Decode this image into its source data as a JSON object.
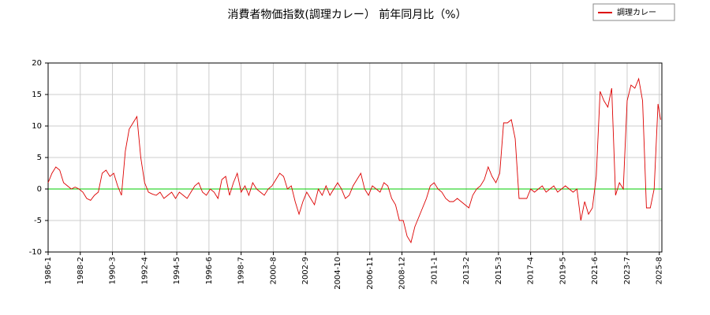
{
  "chart_data": {
    "type": "line",
    "title": "消費者物価指数(調理カレー） 前年同月比（%）",
    "x": [
      "1986-1",
      "1986-4",
      "1986-7",
      "1986-10",
      "1987-1",
      "1987-4",
      "1987-7",
      "1987-10",
      "1988-1",
      "1988-4",
      "1988-7",
      "1988-10",
      "1989-1",
      "1989-4",
      "1989-7",
      "1989-10",
      "1990-1",
      "1990-4",
      "1990-7",
      "1990-10",
      "1991-1",
      "1991-4",
      "1991-7",
      "1991-10",
      "1992-1",
      "1992-4",
      "1992-7",
      "1992-10",
      "1993-1",
      "1993-4",
      "1993-7",
      "1993-10",
      "1994-1",
      "1994-4",
      "1994-7",
      "1994-10",
      "1995-1",
      "1995-4",
      "1995-7",
      "1995-10",
      "1996-1",
      "1996-4",
      "1996-7",
      "1996-10",
      "1997-1",
      "1997-4",
      "1997-7",
      "1997-10",
      "1998-1",
      "1998-4",
      "1998-7",
      "1998-10",
      "1999-1",
      "1999-4",
      "1999-7",
      "1999-10",
      "2000-1",
      "2000-4",
      "2000-7",
      "2000-10",
      "2001-1",
      "2001-4",
      "2001-7",
      "2001-10",
      "2002-1",
      "2002-4",
      "2002-7",
      "2002-10",
      "2003-1",
      "2003-4",
      "2003-7",
      "2003-10",
      "2004-1",
      "2004-4",
      "2004-7",
      "2004-10",
      "2005-1",
      "2005-4",
      "2005-7",
      "2005-10",
      "2006-1",
      "2006-4",
      "2006-7",
      "2006-10",
      "2007-1",
      "2007-4",
      "2007-7",
      "2007-10",
      "2008-1",
      "2008-4",
      "2008-7",
      "2008-10",
      "2009-1",
      "2009-4",
      "2009-7",
      "2009-10",
      "2010-1",
      "2010-4",
      "2010-7",
      "2010-10",
      "2011-1",
      "2011-4",
      "2011-7",
      "2011-10",
      "2012-1",
      "2012-4",
      "2012-7",
      "2012-10",
      "2013-1",
      "2013-4",
      "2013-7",
      "2013-10",
      "2014-1",
      "2014-4",
      "2014-7",
      "2014-10",
      "2015-1",
      "2015-4",
      "2015-7",
      "2015-10",
      "2016-1",
      "2016-4",
      "2016-7",
      "2016-10",
      "2017-1",
      "2017-4",
      "2017-7",
      "2017-10",
      "2018-1",
      "2018-4",
      "2018-7",
      "2018-10",
      "2019-1",
      "2019-4",
      "2019-7",
      "2019-10",
      "2020-1",
      "2020-4",
      "2020-7",
      "2020-10",
      "2021-1",
      "2021-4",
      "2021-7",
      "2021-10",
      "2022-1",
      "2022-4",
      "2022-7",
      "2022-10",
      "2023-1",
      "2023-4",
      "2023-7",
      "2023-10",
      "2024-1",
      "2024-4",
      "2024-7",
      "2024-10",
      "2025-1",
      "2025-4",
      "2025-7",
      "2025-9"
    ],
    "series": [
      {
        "name": "調理カレー",
        "color": "#dd0000",
        "values": [
          1,
          2.5,
          3.5,
          3,
          1,
          0.5,
          0,
          0.3,
          0,
          -0.5,
          -1.5,
          -1.8,
          -1,
          -0.5,
          2.5,
          3,
          2,
          2.5,
          0.5,
          -1,
          6,
          9.5,
          10.5,
          11.5,
          5,
          1,
          -0.5,
          -0.8,
          -1,
          -0.5,
          -1.5,
          -1,
          -0.5,
          -1.5,
          -0.5,
          -1,
          -1.5,
          -0.5,
          0.5,
          1,
          -0.5,
          -1,
          0,
          -0.5,
          -1.5,
          1.5,
          2,
          -1,
          1,
          2.5,
          -0.5,
          0.5,
          -1,
          1,
          0,
          -0.5,
          -1,
          0,
          0.5,
          1.5,
          2.5,
          2,
          0,
          0.5,
          -2,
          -4,
          -2,
          -0.5,
          -1.5,
          -2.5,
          0,
          -1,
          0.5,
          -1,
          0,
          1,
          0,
          -1.5,
          -1,
          0.5,
          1.5,
          2.5,
          0,
          -1,
          0.5,
          0,
          -0.5,
          1,
          0.5,
          -1.5,
          -2.5,
          -5,
          -5,
          -7.5,
          -8.5,
          -6,
          -4.5,
          -3,
          -1.5,
          0.5,
          1,
          0,
          -0.5,
          -1.5,
          -2,
          -2,
          -1.5,
          -2,
          -2.5,
          -3,
          -1,
          0,
          0.5,
          1.5,
          3.5,
          2,
          1,
          2.5,
          10.5,
          10.5,
          11,
          8,
          -1.5,
          -1.5,
          -1.5,
          0,
          -0.5,
          0,
          0.5,
          -0.5,
          0,
          0.5,
          -0.5,
          0,
          0.5,
          0,
          -0.5,
          0,
          -5,
          -2,
          -4,
          -3,
          2,
          15.5,
          14,
          13,
          16,
          -1,
          1,
          0,
          14,
          16.5,
          16,
          17.5,
          14,
          -3,
          -3,
          0,
          13.5,
          11
        ]
      }
    ],
    "xlim": [
      "1986-1",
      "2025-10"
    ],
    "xticks": [
      "1986-1",
      "1988-2",
      "1990-3",
      "1992-4",
      "1994-5",
      "1996-6",
      "1998-7",
      "2000-8",
      "2002-9",
      "2004-10",
      "2006-11",
      "2008-12",
      "2011-1",
      "2013-2",
      "2015-3",
      "2017-4",
      "2019-5",
      "2021-6",
      "2023-7",
      "2025-8"
    ],
    "ylim": [
      -10,
      20
    ],
    "yticks": [
      -10,
      -5,
      0,
      5,
      10,
      15,
      20
    ],
    "grid": true,
    "reference_line": {
      "value": 0,
      "color": "#00cc00"
    },
    "legend": "top-right"
  }
}
